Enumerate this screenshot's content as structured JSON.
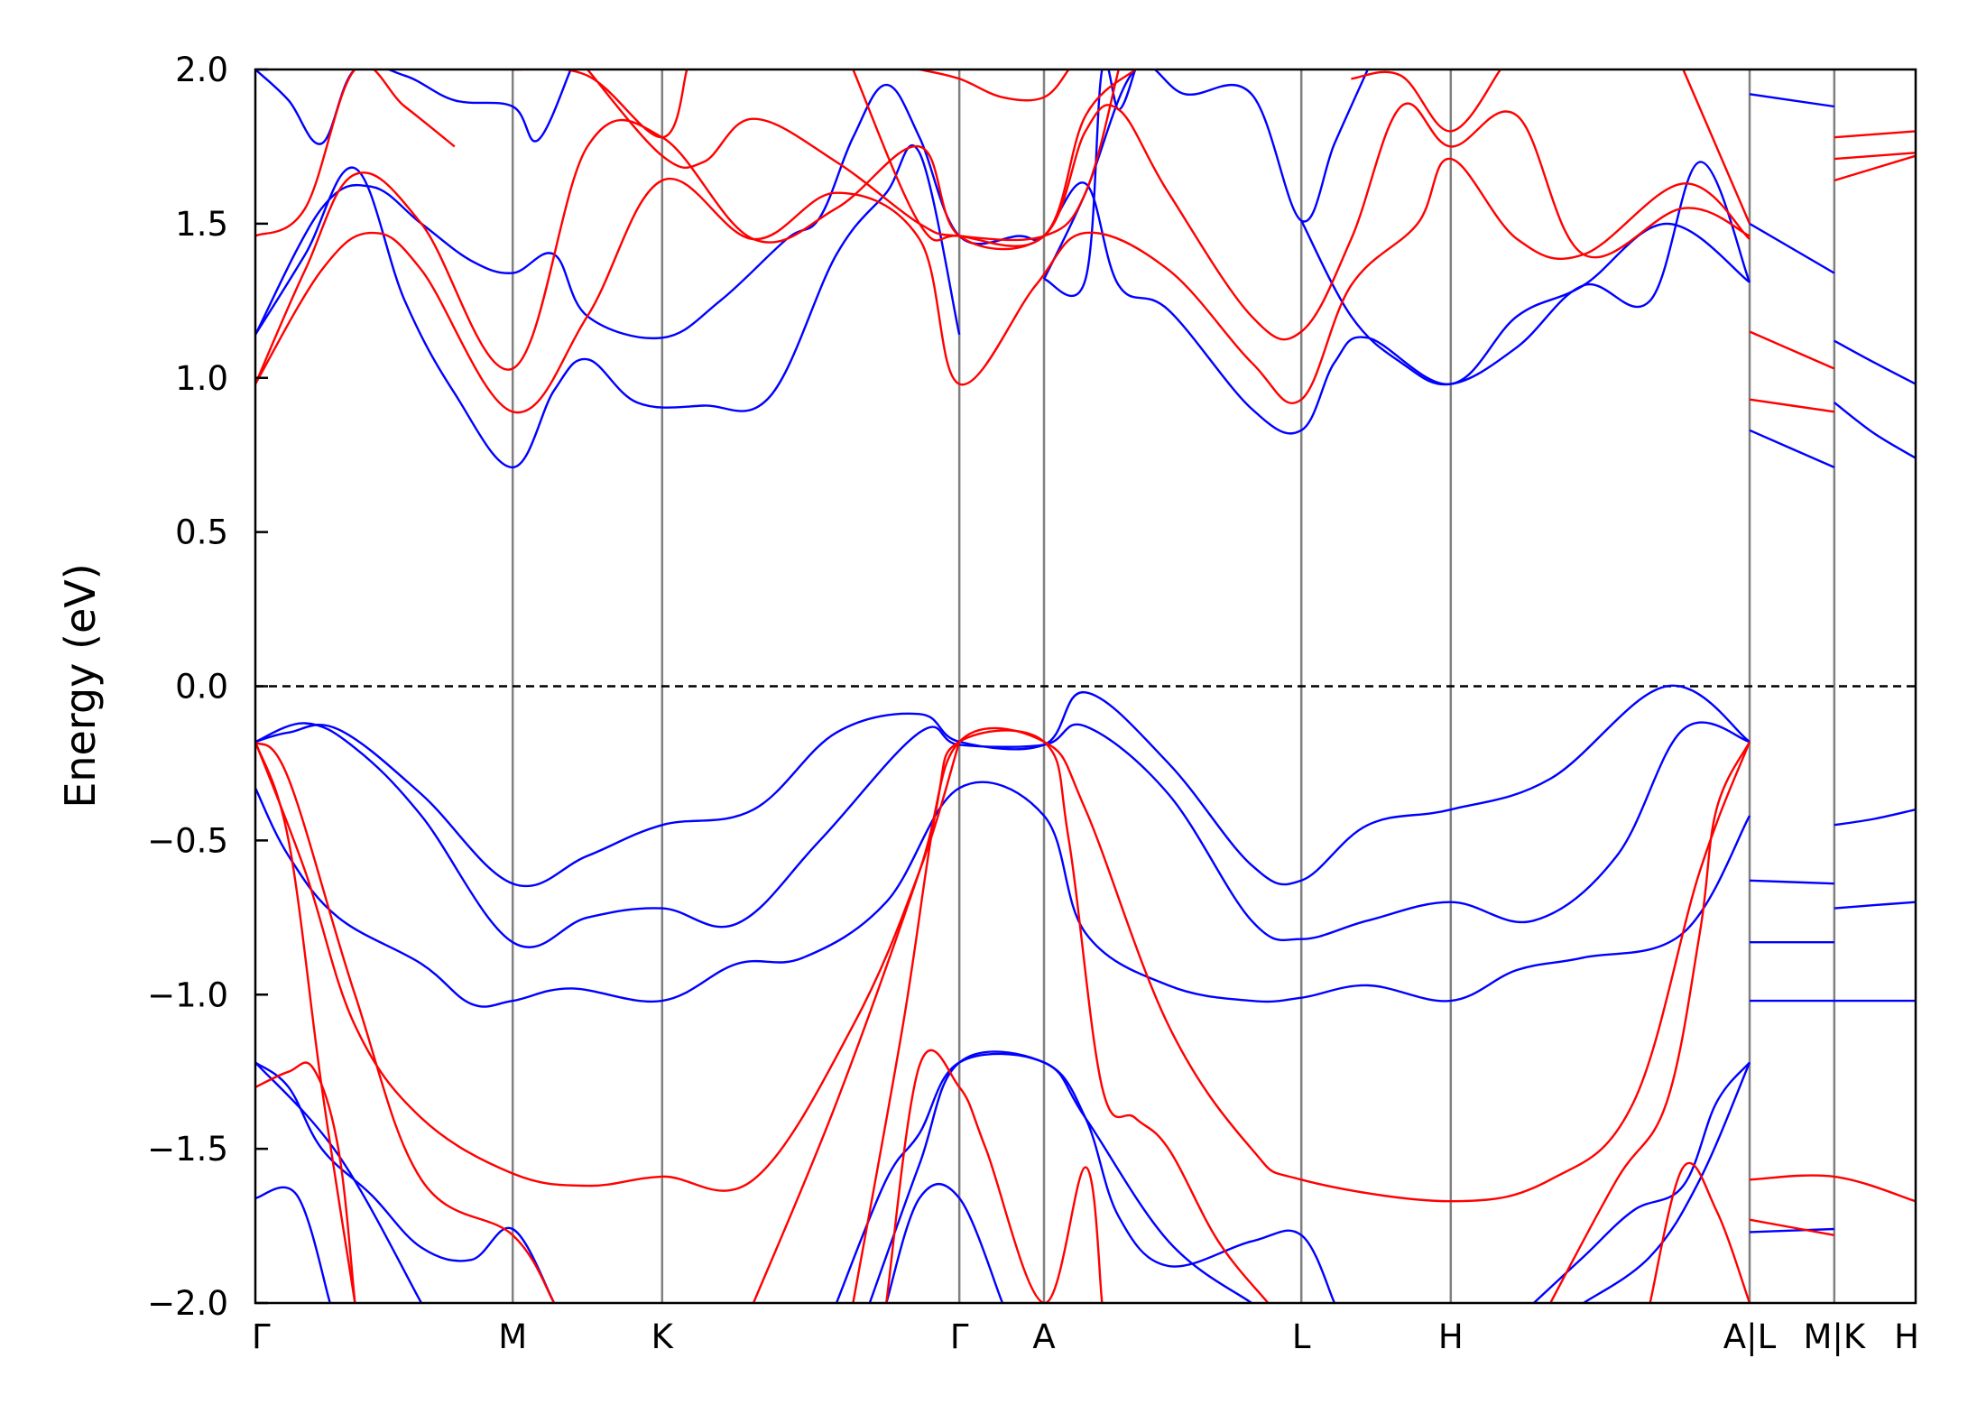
{
  "chart_data": {
    "type": "line",
    "title": "",
    "xlabel": "",
    "ylabel": "Energy (eV)",
    "ylim": [
      -2.0,
      2.0
    ],
    "yticks": [
      -2.0,
      -1.5,
      -1.0,
      -0.5,
      0.0,
      0.5,
      1.0,
      1.5,
      2.0
    ],
    "ytick_labels": [
      "−2.0",
      "−1.5",
      "−1.0",
      "−0.5",
      "0.0",
      "0.5",
      "1.0",
      "1.5",
      "2.0"
    ],
    "xlim": [
      0,
      1
    ],
    "kpoints": [
      {
        "label": "Γ",
        "x": 0.0
      },
      {
        "label": "M",
        "x": 0.155
      },
      {
        "label": "K",
        "x": 0.245
      },
      {
        "label": "Γ",
        "x": 0.424
      },
      {
        "label": "A",
        "x": 0.475
      },
      {
        "label": "L",
        "x": 0.63
      },
      {
        "label": "H",
        "x": 0.72
      },
      {
        "label": "A|L",
        "x": 0.9
      },
      {
        "label": "M|K",
        "x": 0.951
      },
      {
        "label": "H",
        "x": 1.0
      }
    ],
    "fermi_level": 0.0,
    "colors": {
      "blue_bands": "#0000ff",
      "red_bands": "#ff0000",
      "kpath_lines": "#808080",
      "fermi_line": "#000000"
    },
    "series": [
      {
        "color": "#0000ff",
        "x": [
          0,
          0.02,
          0.05,
          0.1,
          0.155,
          0.2,
          0.245,
          0.3,
          0.35,
          0.4,
          0.424,
          0.475,
          0.5,
          0.55,
          0.6,
          0.63,
          0.67,
          0.72,
          0.78,
          0.85,
          0.9
        ],
        "y": [
          -0.18,
          -0.15,
          -0.14,
          -0.35,
          -0.64,
          -0.55,
          -0.45,
          -0.4,
          -0.15,
          -0.09,
          -0.18,
          -0.19,
          -0.02,
          -0.25,
          -0.58,
          -0.63,
          -0.45,
          -0.4,
          -0.3,
          0.0,
          -0.18
        ]
      },
      {
        "color": "#0000ff",
        "x": [
          0,
          0.03,
          0.06,
          0.1,
          0.155,
          0.2,
          0.245,
          0.29,
          0.34,
          0.4,
          0.424,
          0.475,
          0.5,
          0.55,
          0.6,
          0.63,
          0.67,
          0.72,
          0.77,
          0.82,
          0.86,
          0.9
        ],
        "y": [
          -0.18,
          -0.12,
          -0.2,
          -0.42,
          -0.83,
          -0.75,
          -0.72,
          -0.77,
          -0.5,
          -0.15,
          -0.19,
          -0.19,
          -0.13,
          -0.35,
          -0.76,
          -0.82,
          -0.76,
          -0.7,
          -0.76,
          -0.55,
          -0.14,
          -0.18
        ]
      },
      {
        "color": "#0000ff",
        "x": [
          0,
          0.02,
          0.05,
          0.1,
          0.13,
          0.155,
          0.19,
          0.245,
          0.29,
          0.33,
          0.38,
          0.424,
          0.475,
          0.5,
          0.55,
          0.6,
          0.63,
          0.67,
          0.72,
          0.76,
          0.8,
          0.86,
          0.9
        ],
        "y": [
          -0.33,
          -0.55,
          -0.75,
          -0.9,
          -1.03,
          -1.02,
          -0.98,
          -1.02,
          -0.9,
          -0.88,
          -0.7,
          -0.33,
          -0.42,
          -0.8,
          -0.97,
          -1.02,
          -1.01,
          -0.97,
          -1.02,
          -0.92,
          -0.88,
          -0.8,
          -0.42
        ]
      },
      {
        "color": "#0000ff",
        "x": [
          0.9,
          0.951
        ],
        "y": [
          -0.63,
          -0.64
        ]
      },
      {
        "color": "#0000ff",
        "x": [
          0.9,
          0.951
        ],
        "y": [
          -0.83,
          -0.83
        ]
      },
      {
        "color": "#0000ff",
        "x": [
          0.9,
          0.951,
          1.0
        ],
        "y": [
          -1.02,
          -1.02,
          -1.02
        ]
      },
      {
        "color": "#0000ff",
        "x": [
          0.951,
          0.975,
          1.0
        ],
        "y": [
          -0.45,
          -0.43,
          -0.4
        ]
      },
      {
        "color": "#0000ff",
        "x": [
          0.951,
          0.975,
          1.0
        ],
        "y": [
          -0.72,
          -0.71,
          -0.7
        ]
      },
      {
        "color": "#0000ff",
        "x": [
          0,
          0.02,
          0.04,
          0.07,
          0.1,
          0.13,
          0.155,
          0.18
        ],
        "y": [
          -1.22,
          -1.3,
          -1.5,
          -1.65,
          -1.82,
          -1.86,
          -1.76,
          -2.0
        ]
      },
      {
        "color": "#0000ff",
        "x": [
          0,
          0.05,
          0.1
        ],
        "y": [
          -1.22,
          -1.52,
          -2.0
        ]
      },
      {
        "color": "#0000ff",
        "x": [
          0,
          0.025,
          0.045
        ],
        "y": [
          -1.66,
          -1.65,
          -2.0
        ]
      },
      {
        "color": "#0000ff",
        "x": [
          0.35,
          0.38,
          0.4,
          0.424,
          0.475,
          0.5,
          0.55,
          0.6
        ],
        "y": [
          -2.0,
          -1.6,
          -1.45,
          -1.22,
          -1.22,
          -1.4,
          -1.8,
          -2.0
        ]
      },
      {
        "color": "#0000ff",
        "x": [
          0.37,
          0.4,
          0.424,
          0.475,
          0.5,
          0.52,
          0.55,
          0.6,
          0.63,
          0.65
        ],
        "y": [
          -2.0,
          -1.55,
          -1.22,
          -1.22,
          -1.4,
          -1.72,
          -1.88,
          -1.8,
          -1.78,
          -2.0
        ]
      },
      {
        "color": "#0000ff",
        "x": [
          0.38,
          0.4,
          0.424,
          0.45
        ],
        "y": [
          -2.0,
          -1.66,
          -1.66,
          -2.0
        ]
      },
      {
        "color": "#0000ff",
        "x": [
          0.77,
          0.8,
          0.83,
          0.86,
          0.88,
          0.9
        ],
        "y": [
          -2.0,
          -1.85,
          -1.7,
          -1.62,
          -1.35,
          -1.22
        ]
      },
      {
        "color": "#0000ff",
        "x": [
          0.8,
          0.84,
          0.87,
          0.9
        ],
        "y": [
          -2.0,
          -1.85,
          -1.6,
          -1.22
        ]
      },
      {
        "color": "#0000ff",
        "x": [
          0.9,
          0.951
        ],
        "y": [
          -1.77,
          -1.76
        ]
      },
      {
        "color": "#0000ff",
        "x": [
          0,
          0.03,
          0.06,
          0.09,
          0.12,
          0.155,
          0.18,
          0.2,
          0.23,
          0.27,
          0.31,
          0.35,
          0.38,
          0.4,
          0.424
        ],
        "y": [
          1.14,
          1.4,
          1.68,
          1.25,
          0.95,
          0.71,
          0.96,
          1.06,
          0.92,
          0.91,
          0.94,
          1.4,
          1.6,
          1.73,
          1.14
        ]
      },
      {
        "color": "#0000ff",
        "x": [
          0,
          0.04,
          0.07,
          0.1,
          0.13,
          0.155,
          0.18,
          0.2,
          0.245,
          0.28,
          0.32,
          0.34,
          0.36,
          0.38,
          0.4,
          0.424,
          0.46,
          0.475,
          0.5,
          0.52,
          0.55,
          0.6,
          0.63,
          0.65,
          0.67,
          0.72,
          0.76,
          0.8,
          0.85,
          0.9
        ],
        "y": [
          1.14,
          1.55,
          1.62,
          1.5,
          1.38,
          1.34,
          1.4,
          1.2,
          1.13,
          1.25,
          1.45,
          1.52,
          1.78,
          1.95,
          1.78,
          1.46,
          1.46,
          1.46,
          1.63,
          1.3,
          1.22,
          0.9,
          0.83,
          1.05,
          1.13,
          0.98,
          1.2,
          1.3,
          1.5,
          1.31
        ]
      },
      {
        "color": "#0000ff",
        "x": [
          0,
          0.02,
          0.04,
          0.06,
          0.09,
          0.12,
          0.155,
          0.17,
          0.19
        ],
        "y": [
          2.0,
          1.9,
          1.76,
          2.0,
          1.98,
          1.9,
          1.88,
          1.77,
          2.0
        ]
      },
      {
        "color": "#0000ff",
        "x": [
          0.475,
          0.5,
          0.53,
          0.56,
          0.6,
          0.63,
          0.65,
          0.67
        ],
        "y": [
          1.32,
          1.6,
          2.0,
          1.92,
          1.92,
          1.51,
          1.76,
          2.0
        ]
      },
      {
        "color": "#0000ff",
        "x": [
          0.475,
          0.5,
          0.51,
          0.52,
          0.53
        ],
        "y": [
          1.32,
          1.32,
          2.0,
          1.87,
          2.0
        ]
      },
      {
        "color": "#0000ff",
        "x": [
          0.63,
          0.66,
          0.69,
          0.72,
          0.76,
          0.8,
          0.84,
          0.87,
          0.9
        ],
        "y": [
          1.51,
          1.2,
          1.05,
          0.98,
          1.1,
          1.3,
          1.25,
          1.7,
          1.31
        ]
      },
      {
        "color": "#0000ff",
        "x": [
          0.9,
          0.951
        ],
        "y": [
          1.92,
          1.88
        ]
      },
      {
        "color": "#0000ff",
        "x": [
          0.9,
          0.951
        ],
        "y": [
          1.5,
          1.34
        ]
      },
      {
        "color": "#0000ff",
        "x": [
          0.9,
          0.951
        ],
        "y": [
          0.83,
          0.71
        ]
      },
      {
        "color": "#0000ff",
        "x": [
          0.951,
          0.975,
          1.0
        ],
        "y": [
          1.12,
          1.05,
          0.98
        ]
      },
      {
        "color": "#0000ff",
        "x": [
          0.951,
          0.975,
          1.0
        ],
        "y": [
          0.92,
          0.82,
          0.74
        ]
      },
      {
        "color": "#ff0000",
        "x": [
          0,
          0.03,
          0.06,
          0.1,
          0.155,
          0.2,
          0.245,
          0.3,
          0.36,
          0.4,
          0.424
        ],
        "y": [
          -0.18,
          -0.6,
          -1.1,
          -1.4,
          -1.58,
          -1.62,
          -1.59,
          -1.6,
          -1.1,
          -0.6,
          -0.18
        ]
      },
      {
        "color": "#ff0000",
        "x": [
          0,
          0.02,
          0.06,
          0.1,
          0.155,
          0.18
        ],
        "y": [
          -0.18,
          -0.3,
          -1.0,
          -1.6,
          -1.78,
          -2.0
        ]
      },
      {
        "color": "#ff0000",
        "x": [
          0,
          0.02,
          0.04,
          0.06
        ],
        "y": [
          -0.18,
          -0.5,
          -1.3,
          -2.0
        ]
      },
      {
        "color": "#ff0000",
        "x": [
          0,
          0.02,
          0.035,
          0.05,
          0.06
        ],
        "y": [
          -1.3,
          -1.25,
          -1.24,
          -1.5,
          -2.0
        ]
      },
      {
        "color": "#ff0000",
        "x": [
          0.3,
          0.35,
          0.4,
          0.424,
          0.475,
          0.5,
          0.55,
          0.6,
          0.63,
          0.72,
          0.78,
          0.83,
          0.87,
          0.9
        ],
        "y": [
          -2.0,
          -1.35,
          -0.6,
          -0.18,
          -0.18,
          -0.4,
          -1.1,
          -1.5,
          -1.6,
          -1.67,
          -1.6,
          -1.35,
          -0.6,
          -0.18
        ]
      },
      {
        "color": "#ff0000",
        "x": [
          0.36,
          0.39,
          0.41,
          0.424,
          0.475,
          0.49,
          0.51,
          0.53,
          0.55,
          0.58,
          0.61
        ],
        "y": [
          -2.0,
          -1.1,
          -0.4,
          -0.18,
          -0.18,
          -0.5,
          -1.3,
          -1.4,
          -1.5,
          -1.8,
          -2.0
        ]
      },
      {
        "color": "#ff0000",
        "x": [
          0.38,
          0.4,
          0.424,
          0.44,
          0.475,
          0.5,
          0.51
        ],
        "y": [
          -2.0,
          -1.23,
          -1.3,
          -1.5,
          -2.0,
          -1.56,
          -2.0
        ]
      },
      {
        "color": "#ff0000",
        "x": [
          0.78,
          0.82,
          0.85,
          0.87,
          0.88,
          0.9
        ],
        "y": [
          -2.0,
          -1.6,
          -1.35,
          -0.8,
          -0.4,
          -0.18
        ]
      },
      {
        "color": "#ff0000",
        "x": [
          0.84,
          0.86,
          0.88,
          0.9
        ],
        "y": [
          -2.0,
          -1.56,
          -1.7,
          -2.0
        ]
      },
      {
        "color": "#ff0000",
        "x": [
          0.9,
          0.951,
          1.0
        ],
        "y": [
          -1.6,
          -1.59,
          -1.67
        ]
      },
      {
        "color": "#ff0000",
        "x": [
          0.9,
          0.951
        ],
        "y": [
          -1.73,
          -1.78
        ]
      },
      {
        "color": "#ff0000",
        "x": [
          0,
          0.04,
          0.07,
          0.1,
          0.155,
          0.2,
          0.245,
          0.3,
          0.35,
          0.4,
          0.424,
          0.47,
          0.5,
          0.55,
          0.6,
          0.63,
          0.66,
          0.7,
          0.72,
          0.76,
          0.8,
          0.86,
          0.9
        ],
        "y": [
          0.98,
          1.35,
          1.47,
          1.35,
          0.89,
          1.2,
          1.64,
          1.45,
          1.6,
          1.45,
          0.98,
          1.3,
          1.47,
          1.35,
          1.05,
          0.93,
          1.3,
          1.5,
          1.71,
          1.45,
          1.4,
          1.63,
          1.45
        ]
      },
      {
        "color": "#ff0000",
        "x": [
          0,
          0.03,
          0.06,
          0.1,
          0.155,
          0.2,
          0.245,
          0.3,
          0.35,
          0.4,
          0.424,
          0.475,
          0.5,
          0.52,
          0.55,
          0.6,
          0.63,
          0.66,
          0.69,
          0.72,
          0.76,
          0.8,
          0.86,
          0.9
        ],
        "y": [
          0.98,
          1.35,
          1.66,
          1.5,
          1.03,
          1.75,
          1.78,
          1.45,
          1.55,
          1.75,
          1.46,
          1.46,
          1.8,
          1.87,
          1.6,
          1.2,
          1.15,
          1.45,
          1.88,
          1.75,
          1.85,
          1.4,
          1.55,
          1.46
        ]
      },
      {
        "color": "#ff0000",
        "x": [
          0,
          0.03,
          0.06,
          0.09,
          0.12
        ],
        "y": [
          1.46,
          1.55,
          2.0,
          1.88,
          1.75
        ]
      },
      {
        "color": "#ff0000",
        "x": [
          0.2,
          0.245,
          0.27,
          0.3,
          0.35,
          0.4,
          0.424,
          0.475,
          0.5,
          0.53
        ],
        "y": [
          2.0,
          1.72,
          1.7,
          1.84,
          1.7,
          1.5,
          1.46,
          1.46,
          1.85,
          2.0
        ]
      },
      {
        "color": "#ff0000",
        "x": [
          0.155,
          0.2,
          0.245,
          0.26
        ],
        "y": [
          2.0,
          1.98,
          1.78,
          2.0
        ]
      },
      {
        "color": "#ff0000",
        "x": [
          0.36,
          0.4,
          0.424,
          0.475,
          0.5,
          0.52
        ],
        "y": [
          2.0,
          1.5,
          1.46,
          1.46,
          1.6,
          2.0
        ]
      },
      {
        "color": "#ff0000",
        "x": [
          0.4,
          0.424,
          0.45,
          0.475,
          0.49
        ],
        "y": [
          2.0,
          1.97,
          1.91,
          1.91,
          2.0
        ]
      },
      {
        "color": "#ff0000",
        "x": [
          0.66,
          0.69,
          0.72,
          0.75
        ],
        "y": [
          1.97,
          1.98,
          1.8,
          2.0
        ]
      },
      {
        "color": "#ff0000",
        "x": [
          0.86,
          0.88,
          0.9
        ],
        "y": [
          2.0,
          1.75,
          1.5
        ]
      },
      {
        "color": "#ff0000",
        "x": [
          0.9,
          0.951
        ],
        "y": [
          1.15,
          1.03
        ]
      },
      {
        "color": "#ff0000",
        "x": [
          0.9,
          0.951
        ],
        "y": [
          0.93,
          0.89
        ]
      },
      {
        "color": "#ff0000",
        "x": [
          0.951,
          1.0
        ],
        "y": [
          1.78,
          1.8
        ]
      },
      {
        "color": "#ff0000",
        "x": [
          0.951,
          1.0
        ],
        "y": [
          1.71,
          1.73
        ]
      },
      {
        "color": "#ff0000",
        "x": [
          0.951,
          1.0
        ],
        "y": [
          1.64,
          1.72
        ]
      }
    ]
  }
}
